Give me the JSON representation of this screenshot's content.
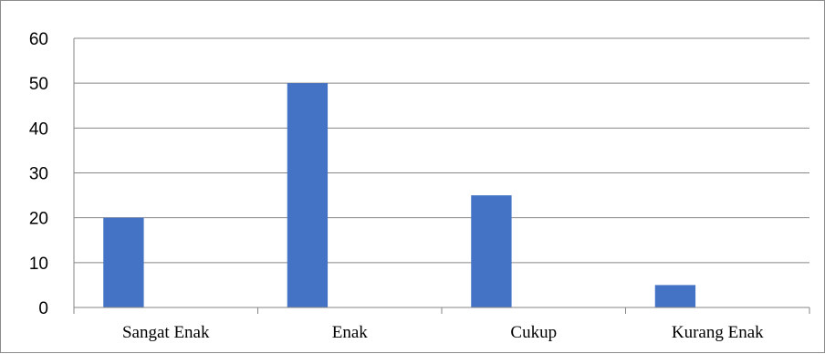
{
  "chart_data": {
    "type": "bar",
    "categories": [
      "Sangat Enak",
      "Enak",
      "Cukup",
      "Kurang Enak"
    ],
    "values": [
      20,
      50,
      25,
      5
    ],
    "title": "",
    "xlabel": "",
    "ylabel": "",
    "ylim": [
      0,
      60
    ],
    "yticks": [
      "0",
      "10",
      "20",
      "30",
      "40",
      "50",
      "60"
    ],
    "grid": true,
    "legend": "none",
    "bar_color": "#4472C4",
    "gridline_color": "#868686",
    "axis_color": "#868686"
  }
}
